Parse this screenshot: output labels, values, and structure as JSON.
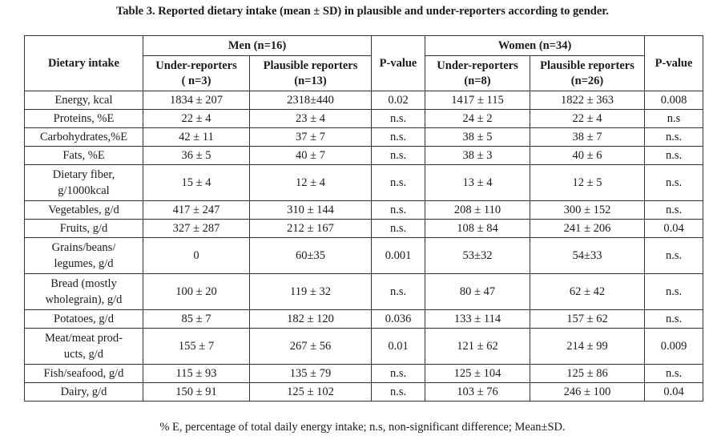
{
  "caption": "Table 3. Reported dietary intake (mean ± SD) in plausible and under-reporters according to gender.",
  "header": {
    "dietary_intake": "Dietary intake",
    "men_group": "Men (n=16)",
    "women_group": "Women (n=34)",
    "men_under": "Under-reporters",
    "men_under_n": "( n=3)",
    "men_plausible": "Plausible reporters",
    "men_plausible_n": "(n=13)",
    "p_value_men": "P-value",
    "women_under": "Under-reporters",
    "women_under_n": "(n=8)",
    "women_plausible": "Plausible reporters",
    "women_plausible_n": "(n=26)",
    "p_value_women": "P-value"
  },
  "rows": [
    {
      "label": "Energy, kcal",
      "men_under": "1834 ± 207",
      "men_plausible": "2318±440",
      "p_men": "0.02",
      "women_under": "1417 ± 115",
      "women_plausible": "1822 ± 363",
      "p_women": "0.008"
    },
    {
      "label": "Proteins, %E",
      "men_under": "22 ± 4",
      "men_plausible": "23 ± 4",
      "p_men": "n.s.",
      "women_under": "24 ± 2",
      "women_plausible": "22 ± 4",
      "p_women": "n.s"
    },
    {
      "label": "Carbohydrates,%E",
      "men_under": "42 ± 11",
      "men_plausible": "37 ± 7",
      "p_men": "n.s.",
      "women_under": "38 ± 5",
      "women_plausible": "38 ± 7",
      "p_women": "n.s."
    },
    {
      "label": "Fats, %E",
      "men_under": "36 ± 5",
      "men_plausible": "40 ± 7",
      "p_men": "n.s.",
      "women_under": "38 ± 3",
      "women_plausible": "40 ± 6",
      "p_women": "n.s."
    },
    {
      "label": "Dietary fiber,",
      "label2": "g/1000kcal",
      "men_under": "15 ± 4",
      "men_plausible": "12 ± 4",
      "p_men": "n.s.",
      "women_under": "13 ± 4",
      "women_plausible": "12 ± 5",
      "p_women": "n.s."
    },
    {
      "label": "Vegetables, g/d",
      "men_under": "417 ± 247",
      "men_plausible": "310 ± 144",
      "p_men": "n.s.",
      "women_under": "208 ± 110",
      "women_plausible": "300 ± 152",
      "p_women": "n.s."
    },
    {
      "label": "Fruits, g/d",
      "men_under": "327 ± 287",
      "men_plausible": "212 ± 167",
      "p_men": "n.s.",
      "women_under": "108 ± 84",
      "women_plausible": "241 ± 206",
      "p_women": "0.04"
    },
    {
      "label": "Grains/beans/",
      "label2": "legumes, g/d",
      "men_under": "0",
      "men_plausible": "60±35",
      "p_men": "0.001",
      "women_under": "53±32",
      "women_plausible": "54±33",
      "p_women": "n.s."
    },
    {
      "label": "Bread (mostly",
      "label2": "wholegrain), g/d",
      "men_under": "100 ± 20",
      "men_plausible": "119 ± 32",
      "p_men": "n.s.",
      "women_under": "80 ± 47",
      "women_plausible": "62 ± 42",
      "p_women": "n.s."
    },
    {
      "label": "Potatoes, g/d",
      "men_under": "85 ± 7",
      "men_plausible": "182 ± 120",
      "p_men": "0.036",
      "women_under": "133 ± 114",
      "women_plausible": "157 ± 62",
      "p_women": "n.s."
    },
    {
      "label": "Meat/meat prod-",
      "label2": "ucts, g/d",
      "men_under": "155 ± 7",
      "men_plausible": "267 ± 56",
      "p_men": "0.01",
      "women_under": "121 ± 62",
      "women_plausible": "214 ± 99",
      "p_women": "0.009"
    },
    {
      "label": "Fish/seafood, g/d",
      "men_under": "115 ± 93",
      "men_plausible": "135 ± 79",
      "p_men": "n.s.",
      "women_under": "125 ± 104",
      "women_plausible": "125 ± 86",
      "p_women": "n.s."
    },
    {
      "label": "Dairy, g/d",
      "men_under": "150 ± 91",
      "men_plausible": "125 ± 102",
      "p_men": "n.s.",
      "women_under": "103 ± 76",
      "women_plausible": "246 ± 100",
      "p_women": "0.04"
    }
  ],
  "footnote": "% E, percentage of total daily energy intake; n.s, non-significant difference; Mean±SD."
}
